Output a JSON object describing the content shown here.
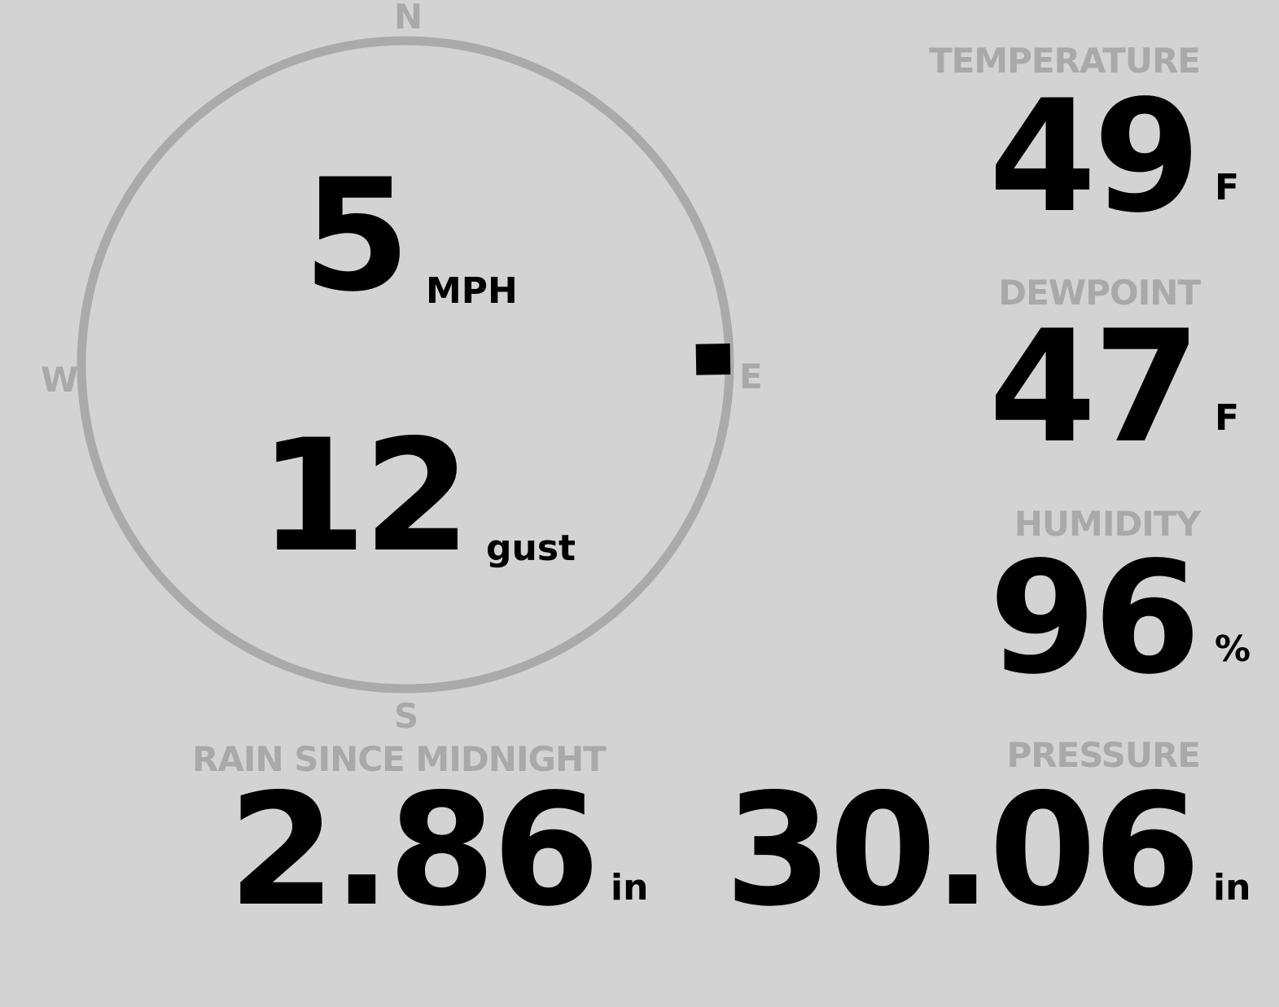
{
  "wind": {
    "speed": "5",
    "speed_unit": "MPH",
    "gust": "12",
    "gust_unit": "gust",
    "direction_deg": 89,
    "cardinals": {
      "n": "N",
      "e": "E",
      "s": "S",
      "w": "W"
    }
  },
  "temperature": {
    "label": "TEMPERATURE",
    "value": "49",
    "unit": "F"
  },
  "dewpoint": {
    "label": "DEWPOINT",
    "value": "47",
    "unit": "F"
  },
  "humidity": {
    "label": "HUMIDITY",
    "value": "96",
    "unit": "%"
  },
  "rain": {
    "label": "RAIN SINCE MIDNIGHT",
    "value": "2.86",
    "unit": "in"
  },
  "pressure": {
    "label": "PRESSURE",
    "value": "30.06",
    "unit": "in"
  },
  "colors": {
    "background": "#d3d3d3",
    "label": "#a9a9a9",
    "ring": "#aaaaaa",
    "value": "#000000"
  }
}
